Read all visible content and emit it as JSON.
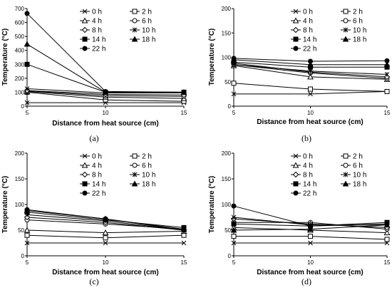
{
  "chart_data": [
    {
      "type": "line",
      "caption": "(a)",
      "x": [
        5,
        10,
        15
      ],
      "xticks": [
        "5",
        "10",
        "15"
      ],
      "xlim": [
        5,
        15
      ],
      "ylim": [
        0,
        700
      ],
      "yticks": [
        0,
        100,
        200,
        300,
        400,
        500,
        600,
        700
      ],
      "xlabel": "Distance from heat source (cm)",
      "ylabel": "Temperature (°C)",
      "legend_position": "top-right",
      "series": [
        {
          "name": "0 h",
          "marker": "x",
          "values": [
            25,
            25,
            25
          ]
        },
        {
          "name": "2 h",
          "marker": "square-open",
          "values": [
            100,
            45,
            35
          ]
        },
        {
          "name": "4 h",
          "marker": "triangle-open",
          "values": [
            105,
            65,
            55
          ]
        },
        {
          "name": "6 h",
          "marker": "circle-open",
          "values": [
            110,
            75,
            70
          ]
        },
        {
          "name": "8 h",
          "marker": "diamond-open",
          "values": [
            112,
            85,
            80
          ]
        },
        {
          "name": "10 h",
          "marker": "star",
          "values": [
            125,
            95,
            95
          ]
        },
        {
          "name": "14 h",
          "marker": "square-filled",
          "values": [
            300,
            100,
            100
          ]
        },
        {
          "name": "18 h",
          "marker": "triangle-filled",
          "values": [
            445,
            100,
            100
          ]
        },
        {
          "name": "22 h",
          "marker": "circle-filled",
          "values": [
            665,
            105,
            100
          ]
        }
      ]
    },
    {
      "type": "line",
      "caption": "(b)",
      "x": [
        5,
        10,
        15
      ],
      "xticks": [
        "5",
        "10",
        "15"
      ],
      "xlim": [
        5,
        15
      ],
      "ylim": [
        0,
        200
      ],
      "yticks": [
        0,
        50,
        100,
        150,
        200
      ],
      "xlabel": "Distance from heat source (cm)",
      "ylabel": "Temperature (°C)",
      "legend_position": "top-right",
      "series": [
        {
          "name": "0 h",
          "marker": "x",
          "values": [
            25,
            25,
            30
          ]
        },
        {
          "name": "2 h",
          "marker": "square-open",
          "values": [
            47,
            35,
            30
          ]
        },
        {
          "name": "4 h",
          "marker": "triangle-open",
          "values": [
            83,
            60,
            55
          ]
        },
        {
          "name": "6 h",
          "marker": "circle-open",
          "values": [
            85,
            68,
            57
          ]
        },
        {
          "name": "8 h",
          "marker": "diamond-open",
          "values": [
            88,
            70,
            60
          ]
        },
        {
          "name": "10 h",
          "marker": "star",
          "values": [
            85,
            72,
            65
          ]
        },
        {
          "name": "14 h",
          "marker": "square-filled",
          "values": [
            90,
            80,
            80
          ]
        },
        {
          "name": "18 h",
          "marker": "triangle-filled",
          "values": [
            95,
            85,
            85
          ]
        },
        {
          "name": "22 h",
          "marker": "circle-filled",
          "values": [
            98,
            92,
            93
          ]
        }
      ]
    },
    {
      "type": "line",
      "caption": "(c)",
      "x": [
        5,
        10,
        15
      ],
      "xticks": [
        "5",
        "10",
        "15"
      ],
      "xlim": [
        5,
        15
      ],
      "ylim": [
        0,
        200
      ],
      "yticks": [
        0,
        50,
        100,
        150,
        200
      ],
      "xlabel": "Distance from heat source (cm)",
      "ylabel": "Temperature (°C)",
      "legend_position": "top-right",
      "series": [
        {
          "name": "0 h",
          "marker": "x",
          "values": [
            25,
            25,
            25
          ]
        },
        {
          "name": "2 h",
          "marker": "square-open",
          "values": [
            40,
            35,
            40
          ]
        },
        {
          "name": "4 h",
          "marker": "triangle-open",
          "values": [
            50,
            45,
            48
          ]
        },
        {
          "name": "6 h",
          "marker": "circle-open",
          "values": [
            70,
            62,
            52
          ]
        },
        {
          "name": "8 h",
          "marker": "diamond-open",
          "values": [
            75,
            65,
            50
          ]
        },
        {
          "name": "10 h",
          "marker": "star",
          "values": [
            80,
            68,
            50
          ]
        },
        {
          "name": "14 h",
          "marker": "square-filled",
          "values": [
            85,
            70,
            55
          ]
        },
        {
          "name": "18 h",
          "marker": "triangle-filled",
          "values": [
            88,
            72,
            52
          ]
        },
        {
          "name": "22 h",
          "marker": "circle-filled",
          "values": [
            90,
            72,
            50
          ]
        }
      ]
    },
    {
      "type": "line",
      "caption": "(d)",
      "x": [
        5,
        10,
        15
      ],
      "xticks": [
        "5",
        "10",
        "15"
      ],
      "xlim": [
        5,
        15
      ],
      "ylim": [
        0,
        200
      ],
      "yticks": [
        0,
        50,
        100,
        150,
        200
      ],
      "xlabel": "Distance from heat source (cm)",
      "ylabel": "Temperature (°C)",
      "legend_position": "top-right",
      "series": [
        {
          "name": "0 h",
          "marker": "x",
          "values": [
            25,
            25,
            25
          ]
        },
        {
          "name": "2 h",
          "marker": "square-open",
          "values": [
            38,
            38,
            32
          ]
        },
        {
          "name": "4 h",
          "marker": "triangle-open",
          "values": [
            55,
            50,
            45
          ]
        },
        {
          "name": "6 h",
          "marker": "circle-open",
          "values": [
            65,
            65,
            52
          ]
        },
        {
          "name": "8 h",
          "marker": "diamond-open",
          "values": [
            72,
            62,
            55
          ]
        },
        {
          "name": "10 h",
          "marker": "star",
          "values": [
            75,
            60,
            60
          ]
        },
        {
          "name": "14 h",
          "marker": "square-filled",
          "values": [
            62,
            58,
            65
          ]
        },
        {
          "name": "18 h",
          "marker": "triangle-filled",
          "values": [
            50,
            52,
            60
          ]
        },
        {
          "name": "22 h",
          "marker": "circle-filled",
          "values": [
            97,
            58,
            62
          ]
        }
      ]
    }
  ]
}
